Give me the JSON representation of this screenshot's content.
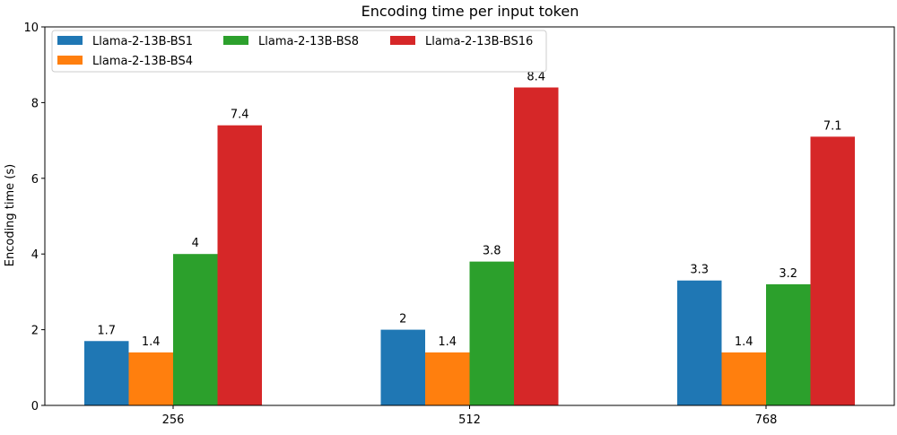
{
  "chart_data": {
    "type": "bar",
    "title": "Encoding time per input token",
    "xlabel": "",
    "ylabel": "Encoding time (s)",
    "ylim": [
      0,
      10
    ],
    "yticks": [
      0,
      2,
      4,
      6,
      8,
      10
    ],
    "categories": [
      "256",
      "512",
      "768"
    ],
    "series": [
      {
        "name": "Llama-2-13B-BS1",
        "values": [
          1.7,
          2,
          3.3
        ],
        "labels": [
          "1.7",
          "2",
          "3.3"
        ],
        "color": "#1f77b4"
      },
      {
        "name": "Llama-2-13B-BS4",
        "values": [
          1.4,
          1.4,
          1.4
        ],
        "labels": [
          "1.4",
          "1.4",
          "1.4"
        ],
        "color": "#ff7f0e"
      },
      {
        "name": "Llama-2-13B-BS8",
        "values": [
          4,
          3.8,
          3.2
        ],
        "labels": [
          "4",
          "3.8",
          "3.2"
        ],
        "color": "#2ca02c"
      },
      {
        "name": "Llama-2-13B-BS16",
        "values": [
          7.4,
          8.4,
          7.1
        ],
        "labels": [
          "7.4",
          "8.4",
          "7.1"
        ],
        "color": "#d62728"
      }
    ],
    "legend_position": "top-left",
    "grid": false
  }
}
